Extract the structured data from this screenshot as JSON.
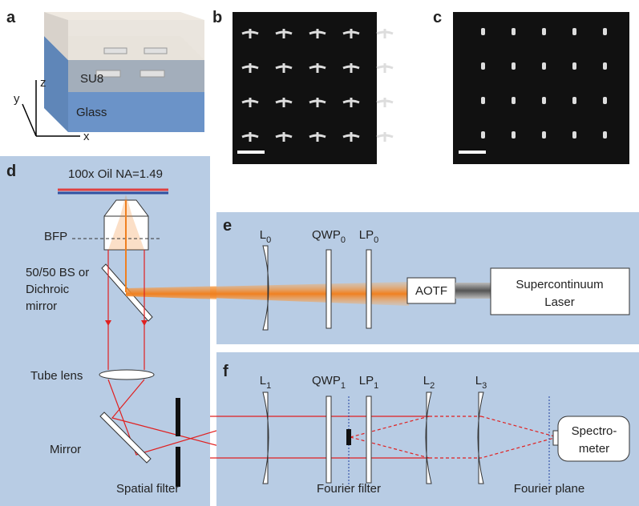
{
  "panel_labels": [
    "a",
    "b",
    "c",
    "d",
    "e",
    "f"
  ],
  "panel_a": {
    "top_layer": "SU8",
    "substrate": "Glass",
    "axes": [
      "x",
      "y",
      "z"
    ]
  },
  "panel_d": {
    "objective": "100x Oil NA=1.49",
    "bfp": "BFP",
    "beam_splitter": [
      "50/50 BS or",
      "Dichroic",
      "mirror"
    ],
    "tube_lens": "Tube lens",
    "mirror": "Mirror",
    "spatial_filter": "Spatial filter"
  },
  "panel_e": {
    "elements": [
      {
        "base": "L",
        "sub": "0"
      },
      {
        "base": "QWP",
        "sub": "0"
      },
      {
        "base": "LP",
        "sub": "0"
      }
    ],
    "aotf": "AOTF",
    "source": [
      "Supercontinuum",
      "Laser"
    ]
  },
  "panel_f": {
    "elements": [
      {
        "base": "L",
        "sub": "1"
      },
      {
        "base": "QWP",
        "sub": "1"
      },
      {
        "base": "LP",
        "sub": "1"
      },
      {
        "base": "L",
        "sub": "2"
      },
      {
        "base": "L",
        "sub": "3"
      }
    ],
    "fourier_filter": "Fourier filter",
    "fourier_plane": "Fourier plane",
    "detector": [
      "Spectro-",
      "meter"
    ]
  }
}
